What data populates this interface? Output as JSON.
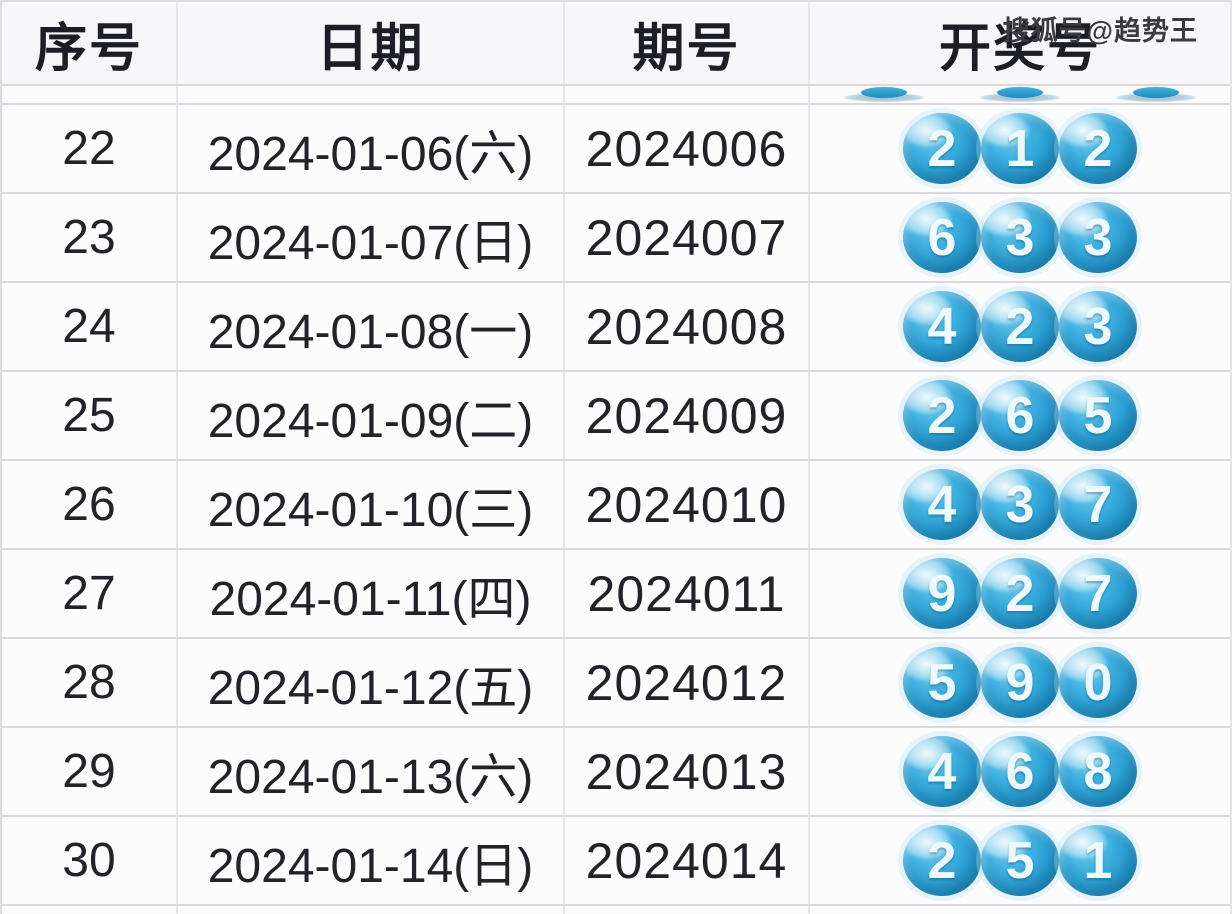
{
  "watermark": "搜狐号@趋势王",
  "table": {
    "headers": [
      "序号",
      "日期",
      "期号",
      "开奖号"
    ],
    "rows": [
      {
        "seq": "22",
        "date": "2024-01-06(六)",
        "issue": "2024006",
        "balls": [
          "2",
          "1",
          "2"
        ]
      },
      {
        "seq": "23",
        "date": "2024-01-07(日)",
        "issue": "2024007",
        "balls": [
          "6",
          "3",
          "3"
        ]
      },
      {
        "seq": "24",
        "date": "2024-01-08(一)",
        "issue": "2024008",
        "balls": [
          "4",
          "2",
          "3"
        ]
      },
      {
        "seq": "25",
        "date": "2024-01-09(二)",
        "issue": "2024009",
        "balls": [
          "2",
          "6",
          "5"
        ]
      },
      {
        "seq": "26",
        "date": "2024-01-10(三)",
        "issue": "2024010",
        "balls": [
          "4",
          "3",
          "7"
        ]
      },
      {
        "seq": "27",
        "date": "2024-01-11(四)",
        "issue": "2024011",
        "balls": [
          "9",
          "2",
          "7"
        ]
      },
      {
        "seq": "28",
        "date": "2024-01-12(五)",
        "issue": "2024012",
        "balls": [
          "5",
          "9",
          "0"
        ]
      },
      {
        "seq": "29",
        "date": "2024-01-13(六)",
        "issue": "2024013",
        "balls": [
          "4",
          "6",
          "8"
        ]
      },
      {
        "seq": "30",
        "date": "2024-01-14(日)",
        "issue": "2024014",
        "balls": [
          "2",
          "5",
          "1"
        ]
      }
    ]
  },
  "colors": {
    "ball_main": "#2a9fd2",
    "ball_dark": "#17719f",
    "ball_highlight": "#7ccfec",
    "ball_number": "#eef9fd",
    "header_text": "#1d1d25",
    "body_text": "#222229",
    "grid_line": "#d9d9df",
    "cell_bg": "#fcfcfd",
    "watermark_text": "#3a3a40"
  }
}
